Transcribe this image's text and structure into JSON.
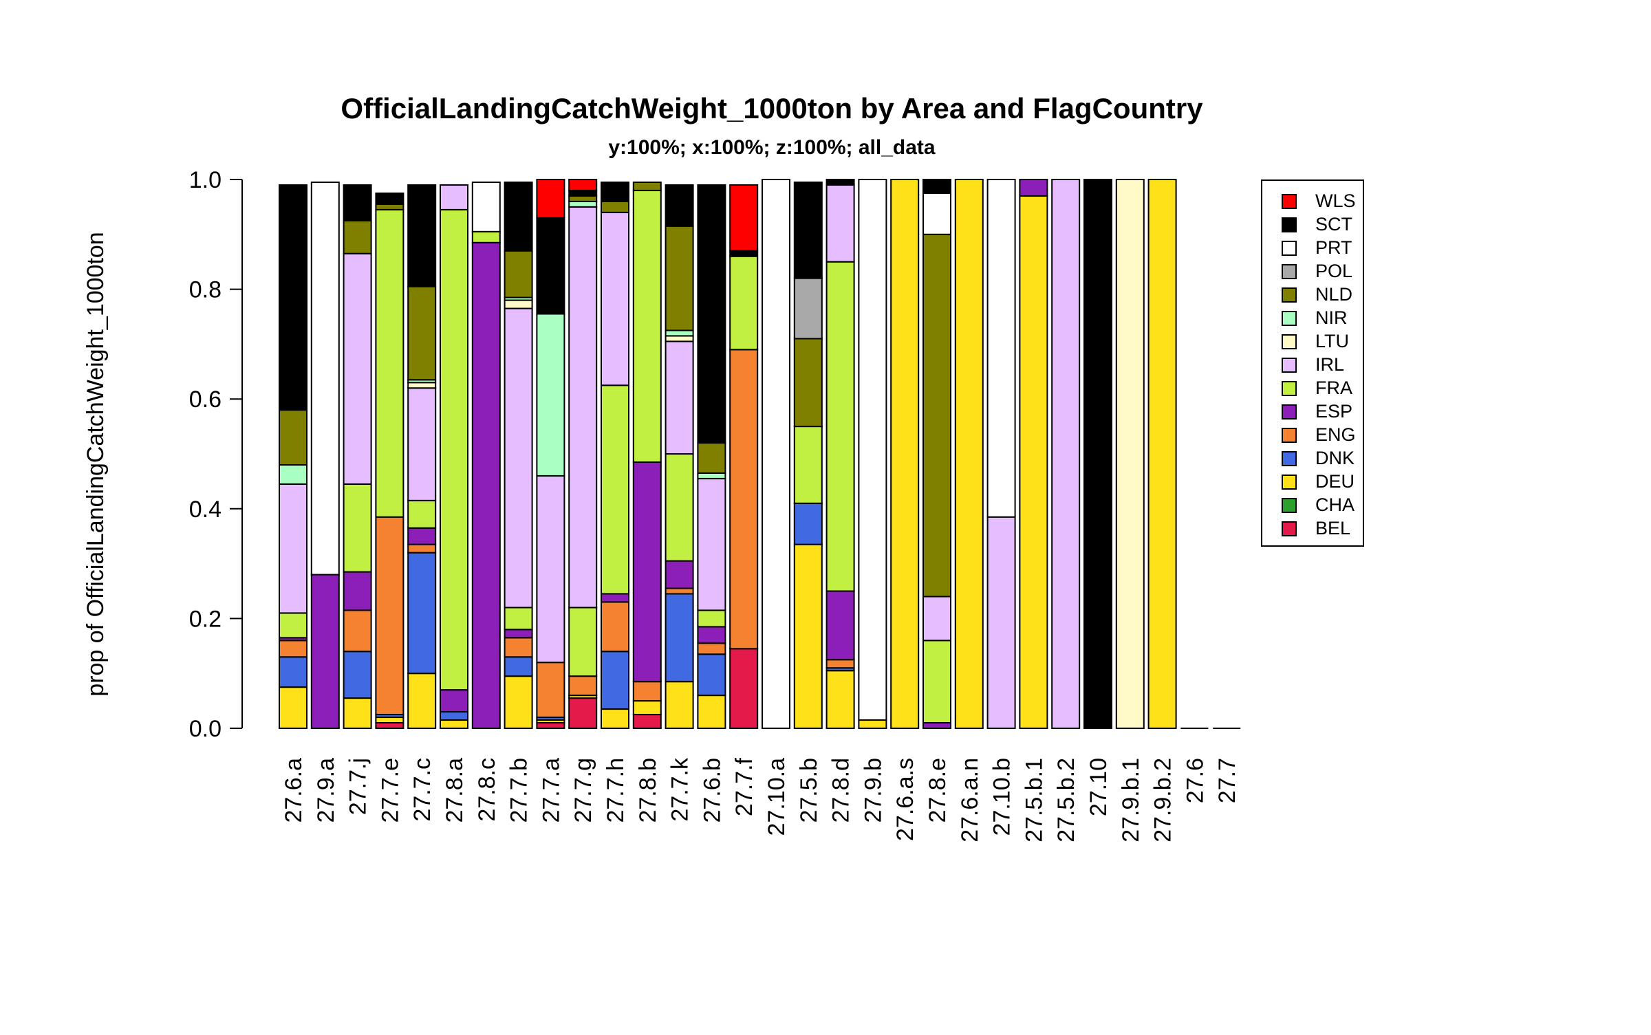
{
  "chart_data": {
    "type": "bar",
    "stacked": true,
    "title": "OfficialLandingCatchWeight_1000ton by Area and FlagCountry",
    "subtitle": "y:100%; x:100%; z:100%; all_data",
    "xlabel": "",
    "ylabel": "prop of OfficialLandingCatchWeight_1000ton",
    "ylim": [
      0,
      1
    ],
    "yticks": [
      "0.0",
      "0.2",
      "0.4",
      "0.6",
      "0.8",
      "1.0"
    ],
    "grid": false,
    "legend_position": "right",
    "categories": [
      "27.6.a",
      "27.9.a",
      "27.7.j",
      "27.7.e",
      "27.7.c",
      "27.8.a",
      "27.8.c",
      "27.7.b",
      "27.7.a",
      "27.7.g",
      "27.7.h",
      "27.8.b",
      "27.7.k",
      "27.6.b",
      "27.7.f",
      "27.10.a",
      "27.5.b",
      "27.8.d",
      "27.9.b",
      "27.6.a.s",
      "27.8.e",
      "27.6.a.n",
      "27.10.b",
      "27.5.b.1",
      "27.5.b.2",
      "27.10",
      "27.9.b.1",
      "27.9.b.2",
      "27.6",
      "27.7"
    ],
    "series": [
      {
        "name": "BEL",
        "color": "#E41A4B",
        "values": [
          0,
          0,
          0,
          0.01,
          0,
          0,
          0,
          0,
          0.01,
          0.055,
          0,
          0.025,
          0,
          0,
          0.145,
          0,
          0,
          0,
          0,
          0,
          0,
          0,
          0,
          0,
          0,
          0,
          0,
          0,
          0,
          0
        ]
      },
      {
        "name": "CHA",
        "color": "#2CA02C",
        "values": [
          0,
          0,
          0,
          0,
          0,
          0,
          0,
          0,
          0,
          0,
          0,
          0,
          0,
          0,
          0,
          0,
          0,
          0,
          0,
          0,
          0,
          0,
          0,
          0,
          0,
          0,
          0,
          0,
          0,
          0
        ]
      },
      {
        "name": "DEU",
        "color": "#FFE119",
        "values": [
          0.075,
          0,
          0.055,
          0.01,
          0.1,
          0.015,
          0,
          0.095,
          0.005,
          0.005,
          0.035,
          0.025,
          0.085,
          0.06,
          0,
          0,
          0.335,
          0.105,
          0.015,
          1.0,
          0,
          1.0,
          0,
          0.97,
          0,
          0,
          0,
          1.0,
          0,
          0
        ]
      },
      {
        "name": "DNK",
        "color": "#4169E1",
        "values": [
          0.055,
          0,
          0.085,
          0.005,
          0.22,
          0.015,
          0,
          0.035,
          0.005,
          0,
          0.105,
          0,
          0.16,
          0.075,
          0,
          0,
          0.075,
          0.005,
          0,
          0,
          0,
          0,
          0,
          0,
          0,
          0,
          0,
          0,
          0,
          0
        ]
      },
      {
        "name": "ENG",
        "color": "#F58231",
        "values": [
          0.03,
          0,
          0.075,
          0.36,
          0.015,
          0,
          0,
          0.035,
          0.1,
          0.035,
          0.09,
          0.035,
          0.01,
          0.02,
          0.545,
          0,
          0,
          0.015,
          0,
          0,
          0,
          0,
          0,
          0,
          0,
          0,
          0,
          0,
          0,
          0
        ]
      },
      {
        "name": "ESP",
        "color": "#8B1FB8",
        "values": [
          0.005,
          0.28,
          0.07,
          0,
          0.03,
          0.04,
          0.885,
          0.015,
          0,
          0,
          0.015,
          0.4,
          0.05,
          0.03,
          0,
          0,
          0,
          0.125,
          0,
          0,
          0.01,
          0,
          0,
          0.03,
          0,
          0,
          0,
          0,
          0,
          0
        ]
      },
      {
        "name": "FRA",
        "color": "#C2F042",
        "values": [
          0.045,
          0,
          0.16,
          0.56,
          0.05,
          0.875,
          0.02,
          0.04,
          0,
          0.125,
          0.38,
          0.495,
          0.195,
          0.03,
          0.17,
          0,
          0.14,
          0.6,
          0,
          0,
          0.15,
          0,
          0,
          0,
          0,
          0,
          0,
          0,
          0,
          0
        ]
      },
      {
        "name": "IRL",
        "color": "#E6BEFF",
        "values": [
          0.235,
          0,
          0.42,
          0,
          0.205,
          0.045,
          0,
          0.545,
          0.34,
          0.73,
          0.315,
          0,
          0.205,
          0.24,
          0,
          0,
          0,
          0.14,
          0,
          0,
          0.08,
          0,
          0.385,
          0,
          1.0,
          0,
          0,
          0,
          0,
          0
        ]
      },
      {
        "name": "LTU",
        "color": "#FFFAC8",
        "values": [
          0,
          0,
          0,
          0,
          0.01,
          0,
          0,
          0.015,
          0,
          0,
          0,
          0,
          0.01,
          0,
          0,
          0,
          0,
          0,
          0,
          0,
          0,
          0,
          0,
          0,
          0,
          0,
          1.0,
          0,
          0,
          0
        ]
      },
      {
        "name": "NIR",
        "color": "#AAFFC3",
        "values": [
          0.035,
          0,
          0,
          0,
          0.005,
          0,
          0,
          0.005,
          0.295,
          0.01,
          0,
          0,
          0.01,
          0.01,
          0,
          0,
          0,
          0,
          0,
          0,
          0,
          0,
          0,
          0,
          0,
          0,
          0,
          0,
          0,
          0
        ]
      },
      {
        "name": "NLD",
        "color": "#808000",
        "values": [
          0.1,
          0,
          0.06,
          0.01,
          0.17,
          0,
          0,
          0.085,
          0,
          0.01,
          0.02,
          0.015,
          0.19,
          0.055,
          0,
          0,
          0.16,
          0,
          0,
          0,
          0.66,
          0,
          0,
          0,
          0,
          0,
          0,
          0,
          0,
          0
        ]
      },
      {
        "name": "POL",
        "color": "#A9A9A9",
        "values": [
          0,
          0,
          0,
          0,
          0,
          0,
          0,
          0,
          0,
          0,
          0,
          0,
          0,
          0,
          0,
          0,
          0.11,
          0,
          0,
          0,
          0,
          0,
          0,
          0,
          0,
          0,
          0,
          0,
          0,
          0
        ]
      },
      {
        "name": "PRT",
        "color": "#FFFFFF",
        "values": [
          0,
          0.715,
          0,
          0,
          0,
          0,
          0.09,
          0,
          0,
          0,
          0,
          0,
          0,
          0,
          0,
          1.0,
          0,
          0,
          0.985,
          0,
          0.075,
          0,
          0.615,
          0,
          0,
          0,
          0,
          0,
          0,
          0
        ]
      },
      {
        "name": "SCT",
        "color": "#000000",
        "values": [
          0.41,
          0,
          0.065,
          0.02,
          0.185,
          0,
          0,
          0.125,
          0.175,
          0.01,
          0.035,
          0,
          0.075,
          0.47,
          0.01,
          0,
          0.175,
          0.01,
          0,
          0,
          0.025,
          0,
          0,
          0,
          0,
          1.0,
          0,
          0,
          0,
          0
        ]
      },
      {
        "name": "WLS",
        "color": "#FF0000",
        "values": [
          0,
          0,
          0,
          0,
          0,
          0,
          0,
          0,
          0.07,
          0.02,
          0,
          0,
          0,
          0,
          0.12,
          0,
          0,
          0,
          0,
          0,
          0,
          0,
          0,
          0,
          0,
          0,
          0,
          0,
          0,
          0
        ]
      }
    ]
  }
}
